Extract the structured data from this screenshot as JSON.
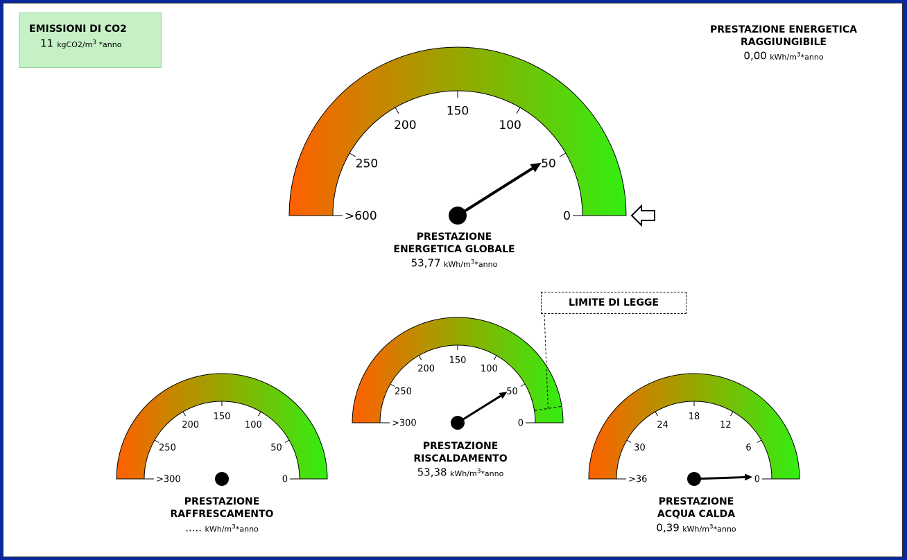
{
  "co2": {
    "title": "EMISSIONI DI CO2",
    "value": "11",
    "unit": "kgCO2/m",
    "unit_exp": "3",
    "unit_suffix": "*anno"
  },
  "achievable": {
    "title1": "PRESTAZIONE ENERGETICA",
    "title2": "RAGGIUNGIBILE",
    "value": "0,00",
    "unit": "kWh/m",
    "unit_exp": "3",
    "unit_suffix": "*anno"
  },
  "limit_label": "LIMITE DI LEGGE",
  "colors": {
    "frame_border": "#0a2a9c",
    "gauge_low": "#33ee11",
    "gauge_mid": "#a0a000",
    "gauge_high": "#ff6000",
    "co2_box": "#c6f0c6"
  },
  "chart_data": [
    {
      "type": "gauge",
      "id": "globale",
      "title1": "PRESTAZIONE",
      "title2": "ENERGETICA GLOBALE",
      "value_text": "53,77",
      "value": 53.77,
      "unit": "kWh/m",
      "unit_exp": "3",
      "unit_suffix": "*anno",
      "scale_max": 300,
      "ticks": [
        {
          "value": 0,
          "label": "0"
        },
        {
          "value": 50,
          "label": "50"
        },
        {
          "value": 100,
          "label": "100"
        },
        {
          "value": 150,
          "label": "150"
        },
        {
          "value": 200,
          "label": "200"
        },
        {
          "value": 250,
          "label": "250"
        },
        {
          "value": 300,
          "label": ">600"
        }
      ],
      "needle": true,
      "class_pointer": true
    },
    {
      "type": "gauge",
      "id": "raffrescamento",
      "title1": "PRESTAZIONE",
      "title2": "RAFFRESCAMENTO",
      "value_text": ".....",
      "value": null,
      "unit": "kWh/m",
      "unit_exp": "3",
      "unit_suffix": "*anno",
      "scale_max": 300,
      "ticks": [
        {
          "value": 0,
          "label": "0"
        },
        {
          "value": 50,
          "label": "50"
        },
        {
          "value": 100,
          "label": "100"
        },
        {
          "value": 150,
          "label": "150"
        },
        {
          "value": 200,
          "label": "200"
        },
        {
          "value": 250,
          "label": "250"
        },
        {
          "value": 300,
          "label": ">300"
        }
      ],
      "needle": false
    },
    {
      "type": "gauge",
      "id": "riscaldamento",
      "title1": "PRESTAZIONE",
      "title2": "RISCALDAMENTO",
      "value_text": "53,38",
      "value": 53.38,
      "unit": "kWh/m",
      "unit_exp": "3",
      "unit_suffix": "*anno",
      "scale_max": 300,
      "ticks": [
        {
          "value": 0,
          "label": "0"
        },
        {
          "value": 50,
          "label": "50"
        },
        {
          "value": 100,
          "label": "100"
        },
        {
          "value": 150,
          "label": "150"
        },
        {
          "value": 200,
          "label": "200"
        },
        {
          "value": 250,
          "label": "250"
        },
        {
          "value": 300,
          "label": ">300"
        }
      ],
      "needle": true,
      "limit_value": 15
    },
    {
      "type": "gauge",
      "id": "acqua_calda",
      "title1": "PRESTAZIONE",
      "title2": "ACQUA CALDA",
      "value_text": "0,39",
      "value": 0.39,
      "unit": "kWh/m",
      "unit_exp": "3",
      "unit_suffix": "*anno",
      "scale_max": 36,
      "ticks": [
        {
          "value": 0,
          "label": "0"
        },
        {
          "value": 6,
          "label": "6"
        },
        {
          "value": 12,
          "label": "12"
        },
        {
          "value": 18,
          "label": "18"
        },
        {
          "value": 24,
          "label": "24"
        },
        {
          "value": 30,
          "label": "30"
        },
        {
          "value": 36,
          "label": ">36"
        }
      ],
      "needle": true
    }
  ]
}
